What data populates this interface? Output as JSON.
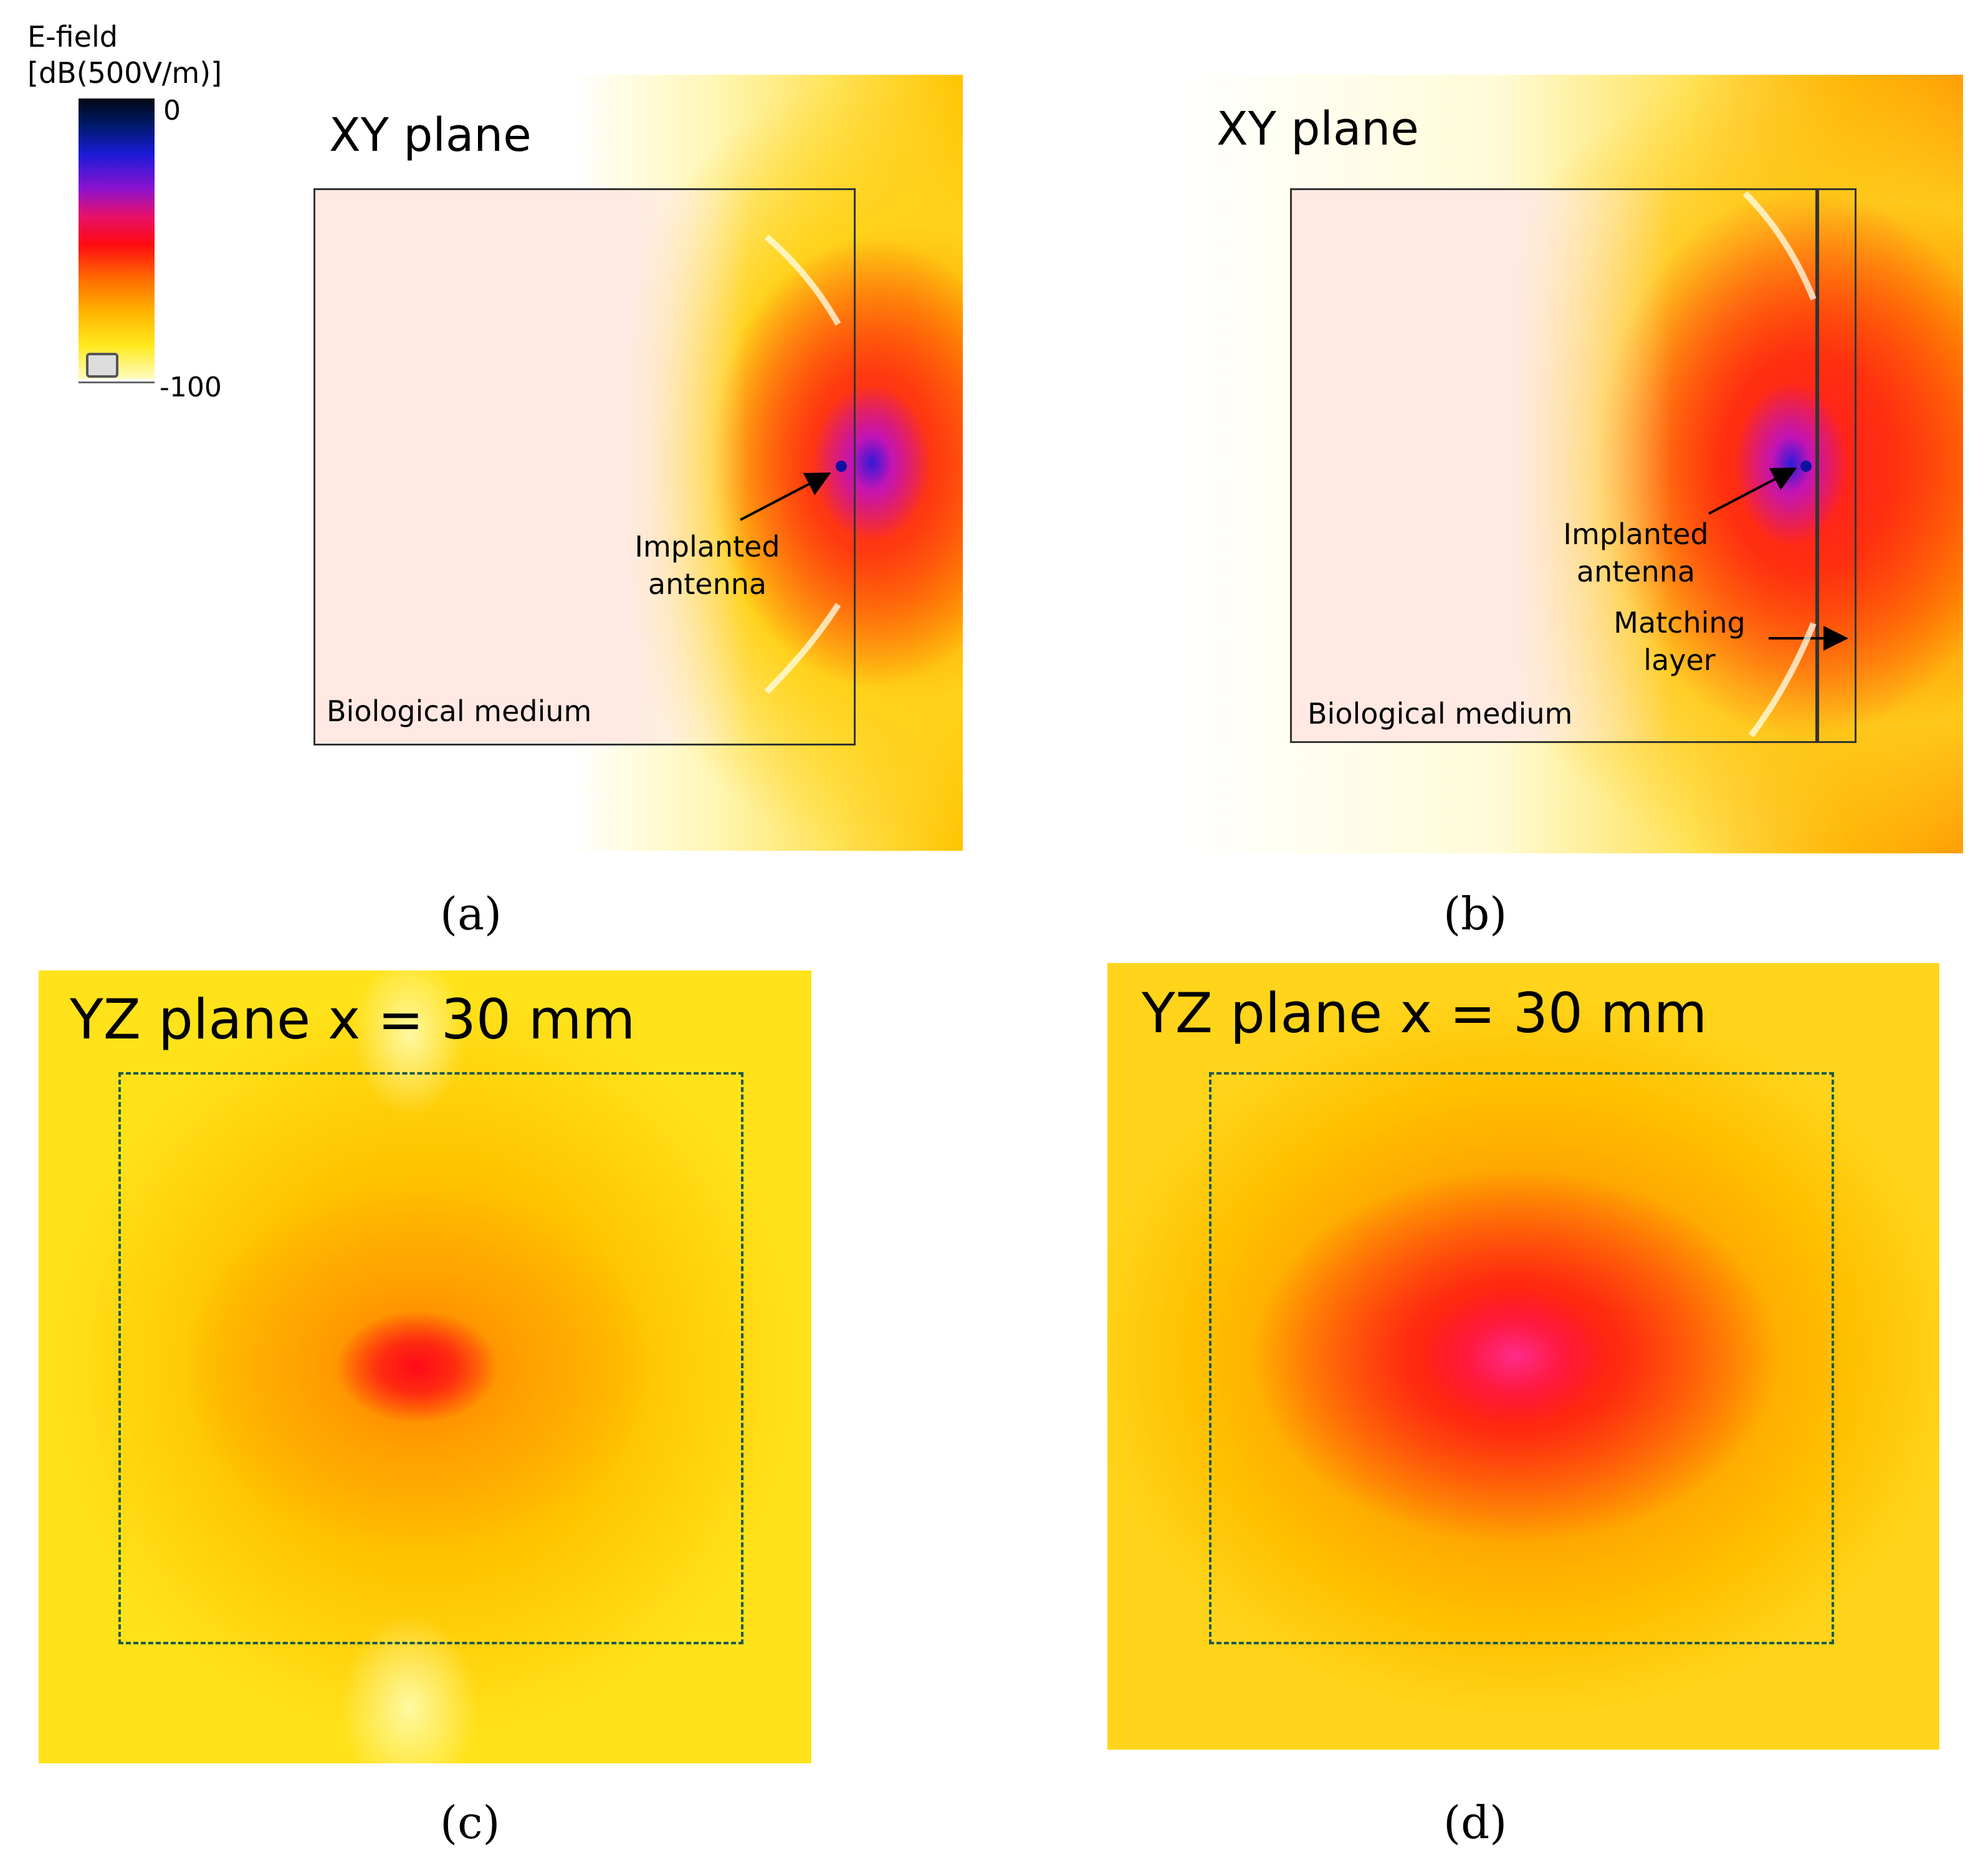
{
  "colorbar": {
    "title_line1": "E-field",
    "title_line2": "[dB(500V/m)]",
    "max_label": "0",
    "min_label": "-100"
  },
  "panel_a": {
    "title": "XY plane",
    "antenna_label_line1": "Implanted",
    "antenna_label_line2": "antenna",
    "medium_label": "Biological medium",
    "caption": "(a)"
  },
  "panel_b": {
    "title": "XY plane",
    "antenna_label_line1": "Implanted",
    "antenna_label_line2": "antenna",
    "layer_label_line1": "Matching",
    "layer_label_line2": "layer",
    "medium_label": "Biological medium",
    "caption": "(b)"
  },
  "panel_c": {
    "title": "YZ plane x = 30 mm",
    "caption": "(c)"
  },
  "panel_d": {
    "title": "YZ plane x = 30 mm",
    "caption": "(d)"
  }
}
